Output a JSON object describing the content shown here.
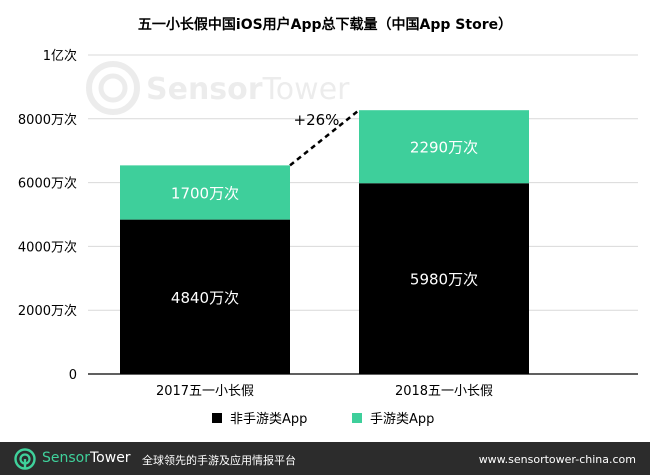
{
  "watermark": {
    "brand_prefix": "Sensor",
    "brand_suffix": "Tower"
  },
  "chart_data": {
    "type": "bar",
    "stacked": true,
    "title": "五一小长假中国iOS用户App总下载量（中国App Store）",
    "categories": [
      "2017五一小长假",
      "2018五一小长假"
    ],
    "series": [
      {
        "name": "非手游类App",
        "values": [
          4840,
          5980
        ],
        "labels": [
          "4840万次",
          "5980万次"
        ],
        "color": "#000000"
      },
      {
        "name": "手游类App",
        "values": [
          1700,
          2290
        ],
        "labels": [
          "1700万次",
          "2290万次"
        ],
        "color": "#3ecf9b"
      }
    ],
    "ylim": [
      0,
      10000
    ],
    "yticks": [
      0,
      2000,
      4000,
      6000,
      8000,
      10000
    ],
    "ytick_labels": [
      "0",
      "2000万次",
      "4000万次",
      "6000万次",
      "8000万次",
      "1亿次"
    ],
    "grid": true,
    "annotation": "+26%",
    "legend_position": "bottom-center",
    "xlabel": "",
    "ylabel": ""
  },
  "footer": {
    "brand_prefix": "Sensor",
    "brand_suffix": "Tower",
    "tagline": "全球领先的手游及应用情报平台",
    "url": "www.sensortower-china.com",
    "background": "#2c2c2c",
    "accent": "#3fd19b"
  }
}
